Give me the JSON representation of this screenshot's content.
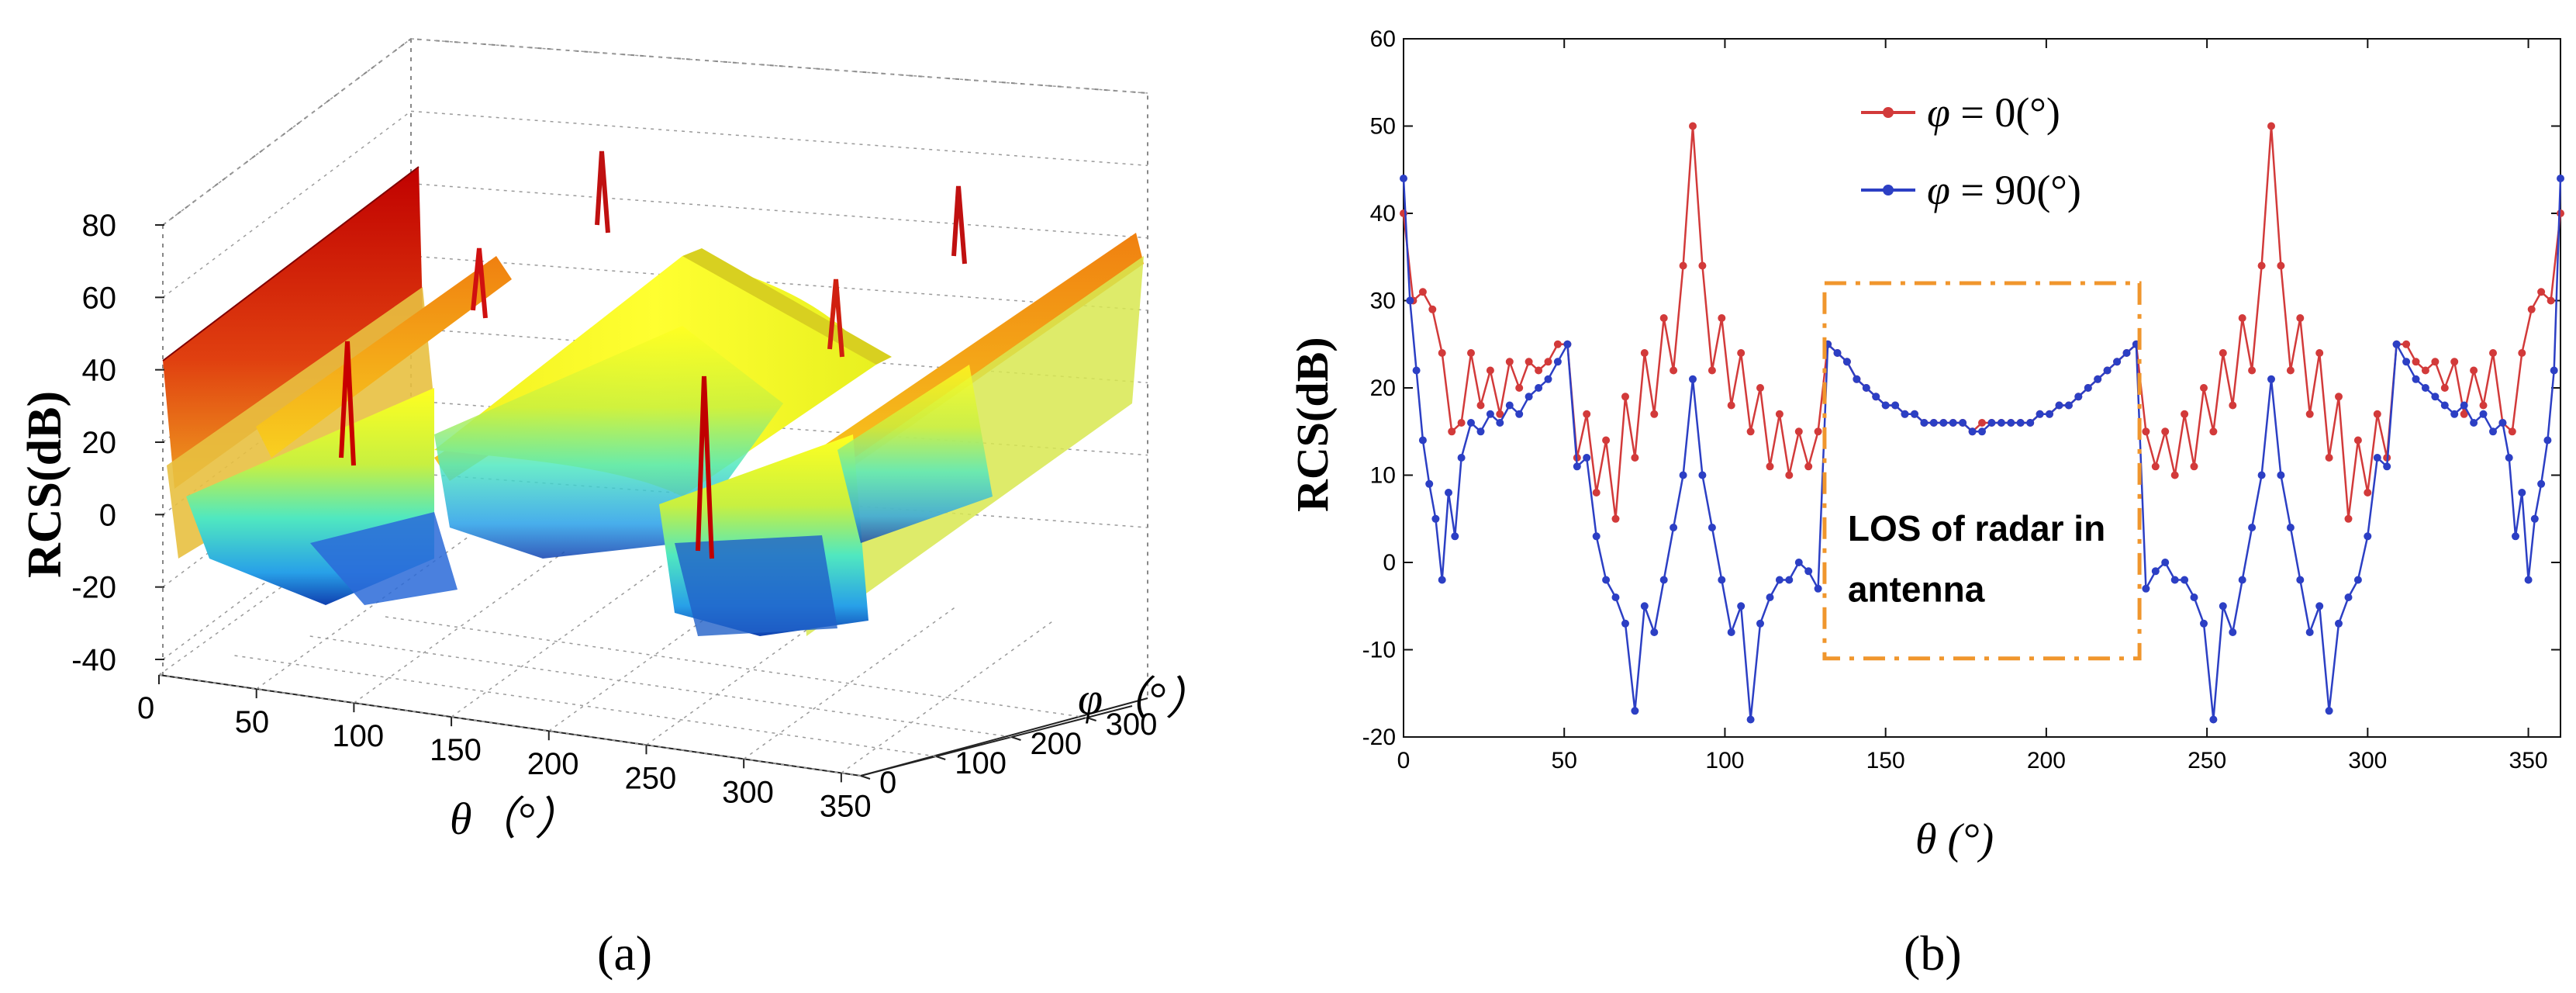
{
  "figure": {
    "panel_a_label": "(a)",
    "panel_b_label": "(b)"
  },
  "chart_data": [
    {
      "type": "surface",
      "panel": "(a)",
      "title": "",
      "zlabel": "RCS(dB)",
      "xlabel": "θ（°）",
      "ylabel": "φ（°）",
      "x_ticks": [
        "0",
        "50",
        "100",
        "150",
        "200",
        "250",
        "300",
        "350"
      ],
      "y_ticks": [
        "0",
        "100",
        "200",
        "300"
      ],
      "z_ticks": [
        "80",
        "60",
        "40",
        "20",
        "0",
        "-20",
        "-40"
      ],
      "xlim": [
        0,
        360
      ],
      "ylim": [
        0,
        360
      ],
      "zlim": [
        -40,
        80
      ],
      "grid": true,
      "colormap": "jet",
      "specular_peaks_theta": [
        0,
        90,
        270,
        360
      ],
      "peak_rcs_db": 60,
      "flat_region_rcs_db": 20
    },
    {
      "type": "line",
      "panel": "(b)",
      "title": "",
      "xlabel": "θ (°)",
      "ylabel": "RCS(dB)",
      "xlim": [
        0,
        360
      ],
      "ylim": [
        -20,
        60
      ],
      "x_ticks": [
        "0",
        "50",
        "100",
        "150",
        "200",
        "250",
        "300",
        "350"
      ],
      "y_ticks": [
        "60",
        "50",
        "40",
        "30",
        "20",
        "10",
        "0",
        "-10",
        "-20"
      ],
      "grid": false,
      "legend_position": "top-center",
      "annotation": {
        "text_line1": "LOS of radar in",
        "text_line2": "antenna",
        "theta_range": [
          131,
          229
        ],
        "rcs_range": [
          -11,
          32
        ]
      },
      "series": [
        {
          "name": "φ = 0(°)",
          "color": "#d23a3a",
          "points": [
            [
              0,
              40
            ],
            [
              3,
              30
            ],
            [
              6,
              31
            ],
            [
              9,
              29
            ],
            [
              12,
              24
            ],
            [
              15,
              15
            ],
            [
              18,
              16
            ],
            [
              21,
              24
            ],
            [
              24,
              18
            ],
            [
              27,
              22
            ],
            [
              30,
              17
            ],
            [
              33,
              23
            ],
            [
              36,
              20
            ],
            [
              39,
              23
            ],
            [
              42,
              22
            ],
            [
              45,
              23
            ],
            [
              48,
              25
            ],
            [
              51,
              25
            ],
            [
              54,
              12
            ],
            [
              57,
              17
            ],
            [
              60,
              8
            ],
            [
              63,
              14
            ],
            [
              66,
              5
            ],
            [
              69,
              19
            ],
            [
              72,
              12
            ],
            [
              75,
              24
            ],
            [
              78,
              17
            ],
            [
              81,
              28
            ],
            [
              84,
              22
            ],
            [
              87,
              34
            ],
            [
              90,
              50
            ],
            [
              93,
              34
            ],
            [
              96,
              22
            ],
            [
              99,
              28
            ],
            [
              102,
              18
            ],
            [
              105,
              24
            ],
            [
              108,
              15
            ],
            [
              111,
              20
            ],
            [
              114,
              11
            ],
            [
              117,
              17
            ],
            [
              120,
              10
            ],
            [
              123,
              15
            ],
            [
              126,
              11
            ],
            [
              129,
              15
            ],
            [
              132,
              25
            ],
            [
              135,
              24
            ],
            [
              138,
              23
            ],
            [
              141,
              21
            ],
            [
              144,
              20
            ],
            [
              147,
              19
            ],
            [
              150,
              18
            ],
            [
              153,
              18
            ],
            [
              156,
              17
            ],
            [
              159,
              17
            ],
            [
              162,
              16
            ],
            [
              165,
              16
            ],
            [
              168,
              16
            ],
            [
              171,
              16
            ],
            [
              174,
              16
            ],
            [
              177,
              15
            ],
            [
              180,
              16
            ],
            [
              183,
              16
            ],
            [
              186,
              16
            ],
            [
              189,
              16
            ],
            [
              192,
              16
            ],
            [
              195,
              16
            ],
            [
              198,
              17
            ],
            [
              201,
              17
            ],
            [
              204,
              18
            ],
            [
              207,
              18
            ],
            [
              210,
              19
            ],
            [
              213,
              20
            ],
            [
              216,
              21
            ],
            [
              219,
              22
            ],
            [
              222,
              23
            ],
            [
              225,
              24
            ],
            [
              228,
              25
            ],
            [
              231,
              15
            ],
            [
              234,
              11
            ],
            [
              237,
              15
            ],
            [
              240,
              10
            ],
            [
              243,
              17
            ],
            [
              246,
              11
            ],
            [
              249,
              20
            ],
            [
              252,
              15
            ],
            [
              255,
              24
            ],
            [
              258,
              18
            ],
            [
              261,
              28
            ],
            [
              264,
              22
            ],
            [
              267,
              34
            ],
            [
              270,
              50
            ],
            [
              273,
              34
            ],
            [
              276,
              22
            ],
            [
              279,
              28
            ],
            [
              282,
              17
            ],
            [
              285,
              24
            ],
            [
              288,
              12
            ],
            [
              291,
              19
            ],
            [
              294,
              5
            ],
            [
              297,
              14
            ],
            [
              300,
              8
            ],
            [
              303,
              17
            ],
            [
              306,
              12
            ],
            [
              309,
              25
            ],
            [
              312,
              25
            ],
            [
              315,
              23
            ],
            [
              318,
              22
            ],
            [
              321,
              23
            ],
            [
              324,
              20
            ],
            [
              327,
              23
            ],
            [
              330,
              17
            ],
            [
              333,
              22
            ],
            [
              336,
              18
            ],
            [
              339,
              24
            ],
            [
              342,
              16
            ],
            [
              345,
              15
            ],
            [
              348,
              24
            ],
            [
              351,
              29
            ],
            [
              354,
              31
            ],
            [
              357,
              30
            ],
            [
              360,
              40
            ]
          ]
        },
        {
          "name": "φ = 90(°)",
          "color": "#2c3fc4",
          "points": [
            [
              0,
              44
            ],
            [
              2,
              30
            ],
            [
              4,
              22
            ],
            [
              6,
              14
            ],
            [
              8,
              9
            ],
            [
              10,
              5
            ],
            [
              12,
              -2
            ],
            [
              14,
              8
            ],
            [
              16,
              3
            ],
            [
              18,
              12
            ],
            [
              21,
              16
            ],
            [
              24,
              15
            ],
            [
              27,
              17
            ],
            [
              30,
              16
            ],
            [
              33,
              18
            ],
            [
              36,
              17
            ],
            [
              39,
              19
            ],
            [
              42,
              20
            ],
            [
              45,
              21
            ],
            [
              48,
              23
            ],
            [
              51,
              25
            ],
            [
              54,
              11
            ],
            [
              57,
              12
            ],
            [
              60,
              3
            ],
            [
              63,
              -2
            ],
            [
              66,
              -4
            ],
            [
              69,
              -7
            ],
            [
              72,
              -17
            ],
            [
              75,
              -5
            ],
            [
              78,
              -8
            ],
            [
              81,
              -2
            ],
            [
              84,
              4
            ],
            [
              87,
              10
            ],
            [
              90,
              21
            ],
            [
              93,
              10
            ],
            [
              96,
              4
            ],
            [
              99,
              -2
            ],
            [
              102,
              -8
            ],
            [
              105,
              -5
            ],
            [
              108,
              -18
            ],
            [
              111,
              -7
            ],
            [
              114,
              -4
            ],
            [
              117,
              -2
            ],
            [
              120,
              -2
            ],
            [
              123,
              0
            ],
            [
              126,
              -1
            ],
            [
              129,
              -3
            ],
            [
              132,
              25
            ],
            [
              135,
              24
            ],
            [
              138,
              23
            ],
            [
              141,
              21
            ],
            [
              144,
              20
            ],
            [
              147,
              19
            ],
            [
              150,
              18
            ],
            [
              153,
              18
            ],
            [
              156,
              17
            ],
            [
              159,
              17
            ],
            [
              162,
              16
            ],
            [
              165,
              16
            ],
            [
              168,
              16
            ],
            [
              171,
              16
            ],
            [
              174,
              16
            ],
            [
              177,
              15
            ],
            [
              180,
              15
            ],
            [
              183,
              16
            ],
            [
              186,
              16
            ],
            [
              189,
              16
            ],
            [
              192,
              16
            ],
            [
              195,
              16
            ],
            [
              198,
              17
            ],
            [
              201,
              17
            ],
            [
              204,
              18
            ],
            [
              207,
              18
            ],
            [
              210,
              19
            ],
            [
              213,
              20
            ],
            [
              216,
              21
            ],
            [
              219,
              22
            ],
            [
              222,
              23
            ],
            [
              225,
              24
            ],
            [
              228,
              25
            ],
            [
              231,
              -3
            ],
            [
              234,
              -1
            ],
            [
              237,
              0
            ],
            [
              240,
              -2
            ],
            [
              243,
              -2
            ],
            [
              246,
              -4
            ],
            [
              249,
              -7
            ],
            [
              252,
              -18
            ],
            [
              255,
              -5
            ],
            [
              258,
              -8
            ],
            [
              261,
              -2
            ],
            [
              264,
              4
            ],
            [
              267,
              10
            ],
            [
              270,
              21
            ],
            [
              273,
              10
            ],
            [
              276,
              4
            ],
            [
              279,
              -2
            ],
            [
              282,
              -8
            ],
            [
              285,
              -5
            ],
            [
              288,
              -17
            ],
            [
              291,
              -7
            ],
            [
              294,
              -4
            ],
            [
              297,
              -2
            ],
            [
              300,
              3
            ],
            [
              303,
              12
            ],
            [
              306,
              11
            ],
            [
              309,
              25
            ],
            [
              312,
              23
            ],
            [
              315,
              21
            ],
            [
              318,
              20
            ],
            [
              321,
              19
            ],
            [
              324,
              18
            ],
            [
              327,
              17
            ],
            [
              330,
              18
            ],
            [
              333,
              16
            ],
            [
              336,
              17
            ],
            [
              339,
              15
            ],
            [
              342,
              16
            ],
            [
              344,
              12
            ],
            [
              346,
              3
            ],
            [
              348,
              8
            ],
            [
              350,
              -2
            ],
            [
              352,
              5
            ],
            [
              354,
              9
            ],
            [
              356,
              14
            ],
            [
              358,
              22
            ],
            [
              360,
              44
            ]
          ]
        }
      ],
      "legend": [
        {
          "symbol": "φ",
          "text": " = 0(°)"
        },
        {
          "symbol": "φ",
          "text": " = 90(°)"
        }
      ]
    }
  ]
}
